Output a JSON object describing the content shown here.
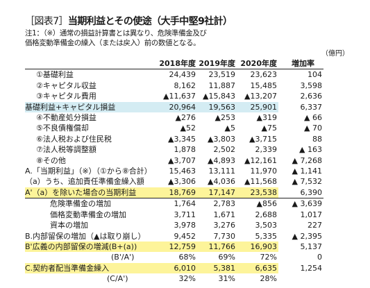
{
  "colors": {
    "highlight": "#fdf49a",
    "band": "#d4ecf3"
  },
  "header": {
    "title_bracket": "［図表7］",
    "title_text": "当期利益とその使途（大手中堅9社計）",
    "note_line1": "注1：（※）通常の損益計算書とは異なり、危険準備金及び",
    "note_line2": "価格変動準備金の繰入（または戻入）前の数値となる。",
    "unit": "（億円）"
  },
  "table": {
    "columns": [
      "2018年度",
      "2019年度",
      "2020年度",
      "増加率"
    ],
    "rows": [
      {
        "label": "①基礎利益",
        "v": [
          "24,439",
          "23,519",
          "23,623",
          "104"
        ]
      },
      {
        "label": "②キャピタル収益",
        "v": [
          "8,162",
          "11,887",
          "15,485",
          "3,598"
        ]
      },
      {
        "label": "③キャピタル費用",
        "v": [
          "▲11,637",
          "▲15,843",
          "▲13,207",
          "2,636"
        ]
      },
      {
        "label": "基礎利益+キャピタル損益",
        "v": [
          "20,964",
          "19,563",
          "25,901",
          "6,337"
        ]
      },
      {
        "label": "④不動産処分損益",
        "v": [
          "▲276",
          "▲253",
          "▲319",
          "▲ 66"
        ]
      },
      {
        "label": "⑤不良債権償却",
        "v": [
          "▲52",
          "▲5",
          "▲75",
          "▲ 70"
        ]
      },
      {
        "label": "⑥法人税および住民税",
        "v": [
          "▲3,345",
          "▲3,803",
          "▲3,715",
          "88"
        ]
      },
      {
        "label": "⑦法人税等調整額",
        "v": [
          "1,878",
          "2,502",
          "2,339",
          "▲ 163"
        ]
      },
      {
        "label": "⑧その他",
        "v": [
          "▲3,707",
          "▲4,893",
          "▲12,161",
          "▲ 7,268"
        ]
      },
      {
        "label": "A.「当期利益」（※）（①から⑧合計）",
        "v": [
          "15,463",
          "13,111",
          "11,970",
          "▲ 1,141"
        ]
      },
      {
        "label": "（a）うち、追加責任準備金繰入額",
        "v": [
          "▲3,306",
          "▲4,036",
          "▲11,568",
          "▲ 7,532"
        ]
      },
      {
        "label": "A'（a）を除いた場合の当期利益",
        "v": [
          "18,769",
          "17,147",
          "23,538",
          "6,390"
        ]
      },
      {
        "label": "危険準備金の増加",
        "v": [
          "1,764",
          "2,783",
          "▲856",
          "▲ 3,639"
        ]
      },
      {
        "label": "価格変動準備金の増加",
        "v": [
          "3,711",
          "1,671",
          "2,688",
          "1,017"
        ]
      },
      {
        "label": "資本の増加",
        "v": [
          "3,978",
          "3,276",
          "3,503",
          "227"
        ]
      },
      {
        "label": "B.内部留保の増加（▲は取り崩し）",
        "v": [
          "9,452",
          "7,730",
          "5,335",
          "▲ 2,395"
        ]
      },
      {
        "label": "B'広義の内部留保の増減(B+(a))",
        "v": [
          "12,759",
          "11,766",
          "16,903",
          "5,137"
        ]
      },
      {
        "label": "(B'/A')",
        "v": [
          "68%",
          "69%",
          "72%",
          "0"
        ]
      },
      {
        "label": "C.契約者配当準備金繰入",
        "v": [
          "6,010",
          "5,381",
          "6,635",
          "1,254"
        ]
      },
      {
        "label": "(C/A')",
        "v": [
          "32%",
          "31%",
          "28%",
          ""
        ]
      }
    ]
  }
}
